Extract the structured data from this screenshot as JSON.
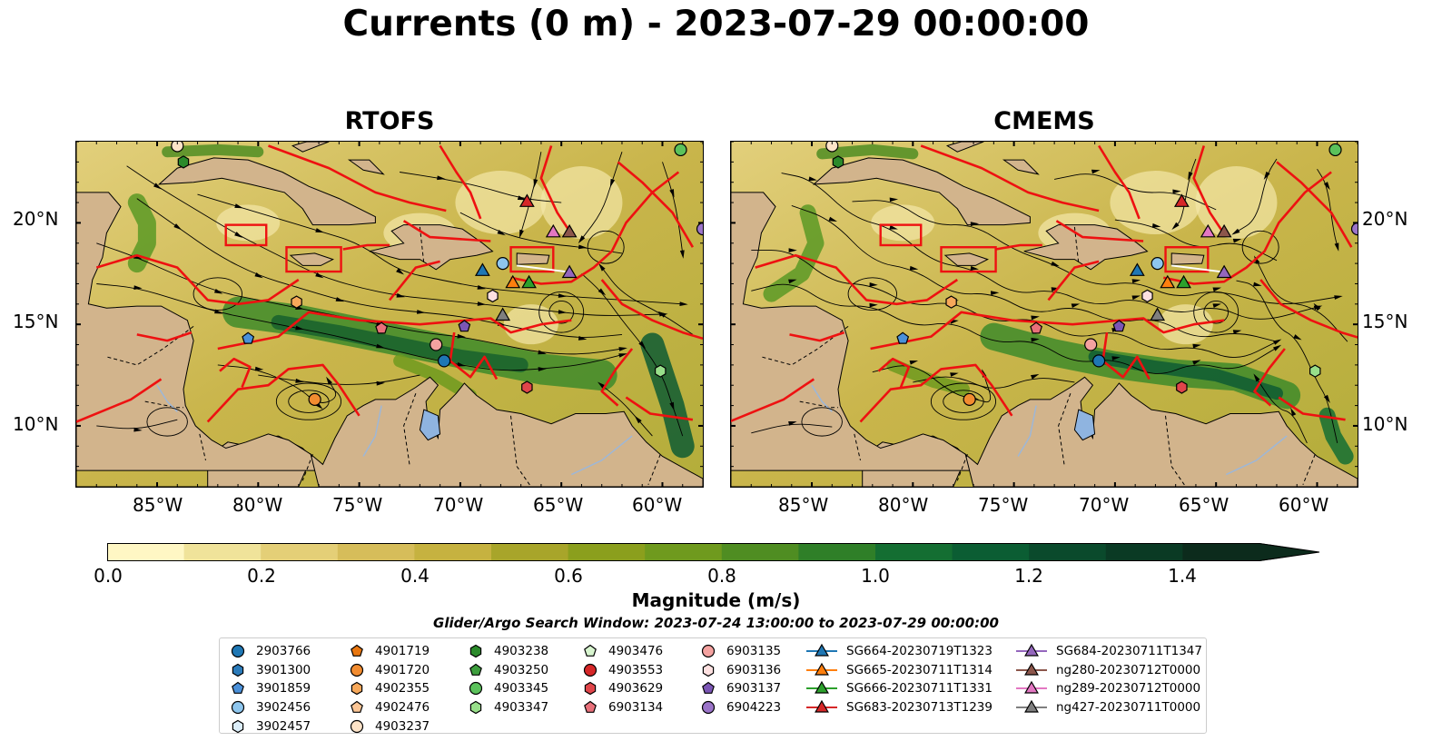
{
  "title": "Currents (0 m) - 2023-07-29 00:00:00",
  "panels": [
    {
      "title": "RTOFS"
    },
    {
      "title": "CMEMS"
    }
  ],
  "axes": {
    "lon_ticks": [
      "85°W",
      "80°W",
      "75°W",
      "70°W",
      "65°W",
      "60°W"
    ],
    "lat_ticks": [
      "20°N",
      "15°N",
      "10°N"
    ]
  },
  "colorbar": {
    "label": "Magnitude (m/s)",
    "ticks": [
      "0.0",
      "0.2",
      "0.4",
      "0.6",
      "0.8",
      "1.0",
      "1.2",
      "1.4"
    ],
    "range": [
      0,
      1.5
    ],
    "extend": "max",
    "colors": [
      "#fff7c4",
      "#f0e39a",
      "#e4cf77",
      "#d6bd5a",
      "#c6b240",
      "#a8a52a",
      "#8b9f1d",
      "#6f9a1e",
      "#4f8d22",
      "#2f7f28",
      "#146e32",
      "#0b5d33",
      "#0a4a2c",
      "#0a3a24",
      "#0c2b1c"
    ]
  },
  "search_window": "Glider/Argo Search Window: 2023-07-24 13:00:00 to 2023-07-29 00:00:00",
  "legend": [
    {
      "label": "2903766",
      "marker": "circle",
      "color": "#1f77b4"
    },
    {
      "label": "3901300",
      "marker": "hexagon",
      "color": "#2b7bba"
    },
    {
      "label": "3901859",
      "marker": "pentagon",
      "color": "#4a90d9"
    },
    {
      "label": "3902456",
      "marker": "circle",
      "color": "#8ec6ee"
    },
    {
      "label": "3902457",
      "marker": "hexagon",
      "color": "#dceefa"
    },
    {
      "label": "4901719",
      "marker": "pentagon",
      "color": "#e8760f"
    },
    {
      "label": "4901720",
      "marker": "circle",
      "color": "#f28c30"
    },
    {
      "label": "4902355",
      "marker": "hexagon",
      "color": "#f7a85a"
    },
    {
      "label": "4902476",
      "marker": "pentagon",
      "color": "#fbc595"
    },
    {
      "label": "4903237",
      "marker": "circle",
      "color": "#fde3c8"
    },
    {
      "label": "4903238",
      "marker": "hexagon",
      "color": "#2b8a2b"
    },
    {
      "label": "4903250",
      "marker": "pentagon",
      "color": "#3d9e3d"
    },
    {
      "label": "4903345",
      "marker": "circle",
      "color": "#5bc25b"
    },
    {
      "label": "4903347",
      "marker": "hexagon",
      "color": "#98df8a"
    },
    {
      "label": "4903476",
      "marker": "pentagon",
      "color": "#d8f5cf"
    },
    {
      "label": "4903553",
      "marker": "circle",
      "color": "#d62728"
    },
    {
      "label": "4903629",
      "marker": "hexagon",
      "color": "#e0454a"
    },
    {
      "label": "6903134",
      "marker": "pentagon",
      "color": "#e8707a"
    },
    {
      "label": "6903135",
      "marker": "circle",
      "color": "#f4a2a0"
    },
    {
      "label": "6903136",
      "marker": "hexagon",
      "color": "#fde0e0"
    },
    {
      "label": "6903137",
      "marker": "pentagon",
      "color": "#7b56b5"
    },
    {
      "label": "6904223",
      "marker": "circle",
      "color": "#9b74c9"
    },
    {
      "label": "SG664-20230719T1323",
      "marker": "triangle-line",
      "color": "#1f77b4"
    },
    {
      "label": "SG665-20230711T1314",
      "marker": "triangle-line",
      "color": "#ff7f0e"
    },
    {
      "label": "SG666-20230711T1331",
      "marker": "triangle-line",
      "color": "#2ca02c"
    },
    {
      "label": "SG683-20230713T1239",
      "marker": "triangle-line",
      "color": "#d62728"
    },
    {
      "label": "SG684-20230711T1347",
      "marker": "triangle-line",
      "color": "#9467bd"
    },
    {
      "label": "ng280-20230712T0000",
      "marker": "triangle-line",
      "color": "#8c564b"
    },
    {
      "label": "ng289-20230712T0000",
      "marker": "triangle-line",
      "color": "#e377c2"
    },
    {
      "label": "ng427-20230711T0000",
      "marker": "triangle-line",
      "color": "#7f7f7f"
    }
  ],
  "map_extent": {
    "lon": [
      -89,
      -58
    ],
    "lat": [
      7,
      24
    ]
  },
  "platforms": [
    {
      "id": "4903237",
      "lon": -84.0,
      "lat": 23.8
    },
    {
      "id": "4903238",
      "lon": -83.7,
      "lat": 23.0
    },
    {
      "id": "4903345",
      "lon": -59.1,
      "lat": 23.6
    },
    {
      "id": "6904223",
      "lon": -58.0,
      "lat": 19.7
    },
    {
      "id": "3901859",
      "lon": -80.5,
      "lat": 14.3
    },
    {
      "id": "4902355",
      "lon": -78.1,
      "lat": 16.1
    },
    {
      "id": "4901720",
      "lon": -77.2,
      "lat": 11.3
    },
    {
      "id": "6903134",
      "lon": -73.9,
      "lat": 14.8
    },
    {
      "id": "6903135",
      "lon": -71.2,
      "lat": 14.0
    },
    {
      "id": "2903766",
      "lon": -70.8,
      "lat": 13.2
    },
    {
      "id": "6903137",
      "lon": -69.8,
      "lat": 14.9
    },
    {
      "id": "6903136",
      "lon": -68.4,
      "lat": 16.4
    },
    {
      "id": "3902456",
      "lon": -67.9,
      "lat": 18.0
    },
    {
      "id": "4903629",
      "lon": -66.7,
      "lat": 11.9
    },
    {
      "id": "4903347",
      "lon": -60.1,
      "lat": 12.7
    }
  ],
  "gliders": [
    {
      "id": "SG683-20230713T1239",
      "lon": -66.7,
      "lat": 21.0
    },
    {
      "id": "ng289-20230712T0000",
      "lon": -65.4,
      "lat": 19.5
    },
    {
      "id": "ng280-20230712T0000",
      "lon": -64.6,
      "lat": 19.5
    },
    {
      "id": "SG664-20230719T1323",
      "lon": -68.9,
      "lat": 17.6
    },
    {
      "id": "SG684-20230711T1347",
      "lon": -64.6,
      "lat": 17.5
    },
    {
      "id": "SG665-20230711T1314",
      "lon": -67.4,
      "lat": 17.0
    },
    {
      "id": "SG666-20230711T1331",
      "lon": -66.6,
      "lat": 17.0
    },
    {
      "id": "ng427-20230711T0000",
      "lon": -67.9,
      "lat": 15.4
    }
  ]
}
